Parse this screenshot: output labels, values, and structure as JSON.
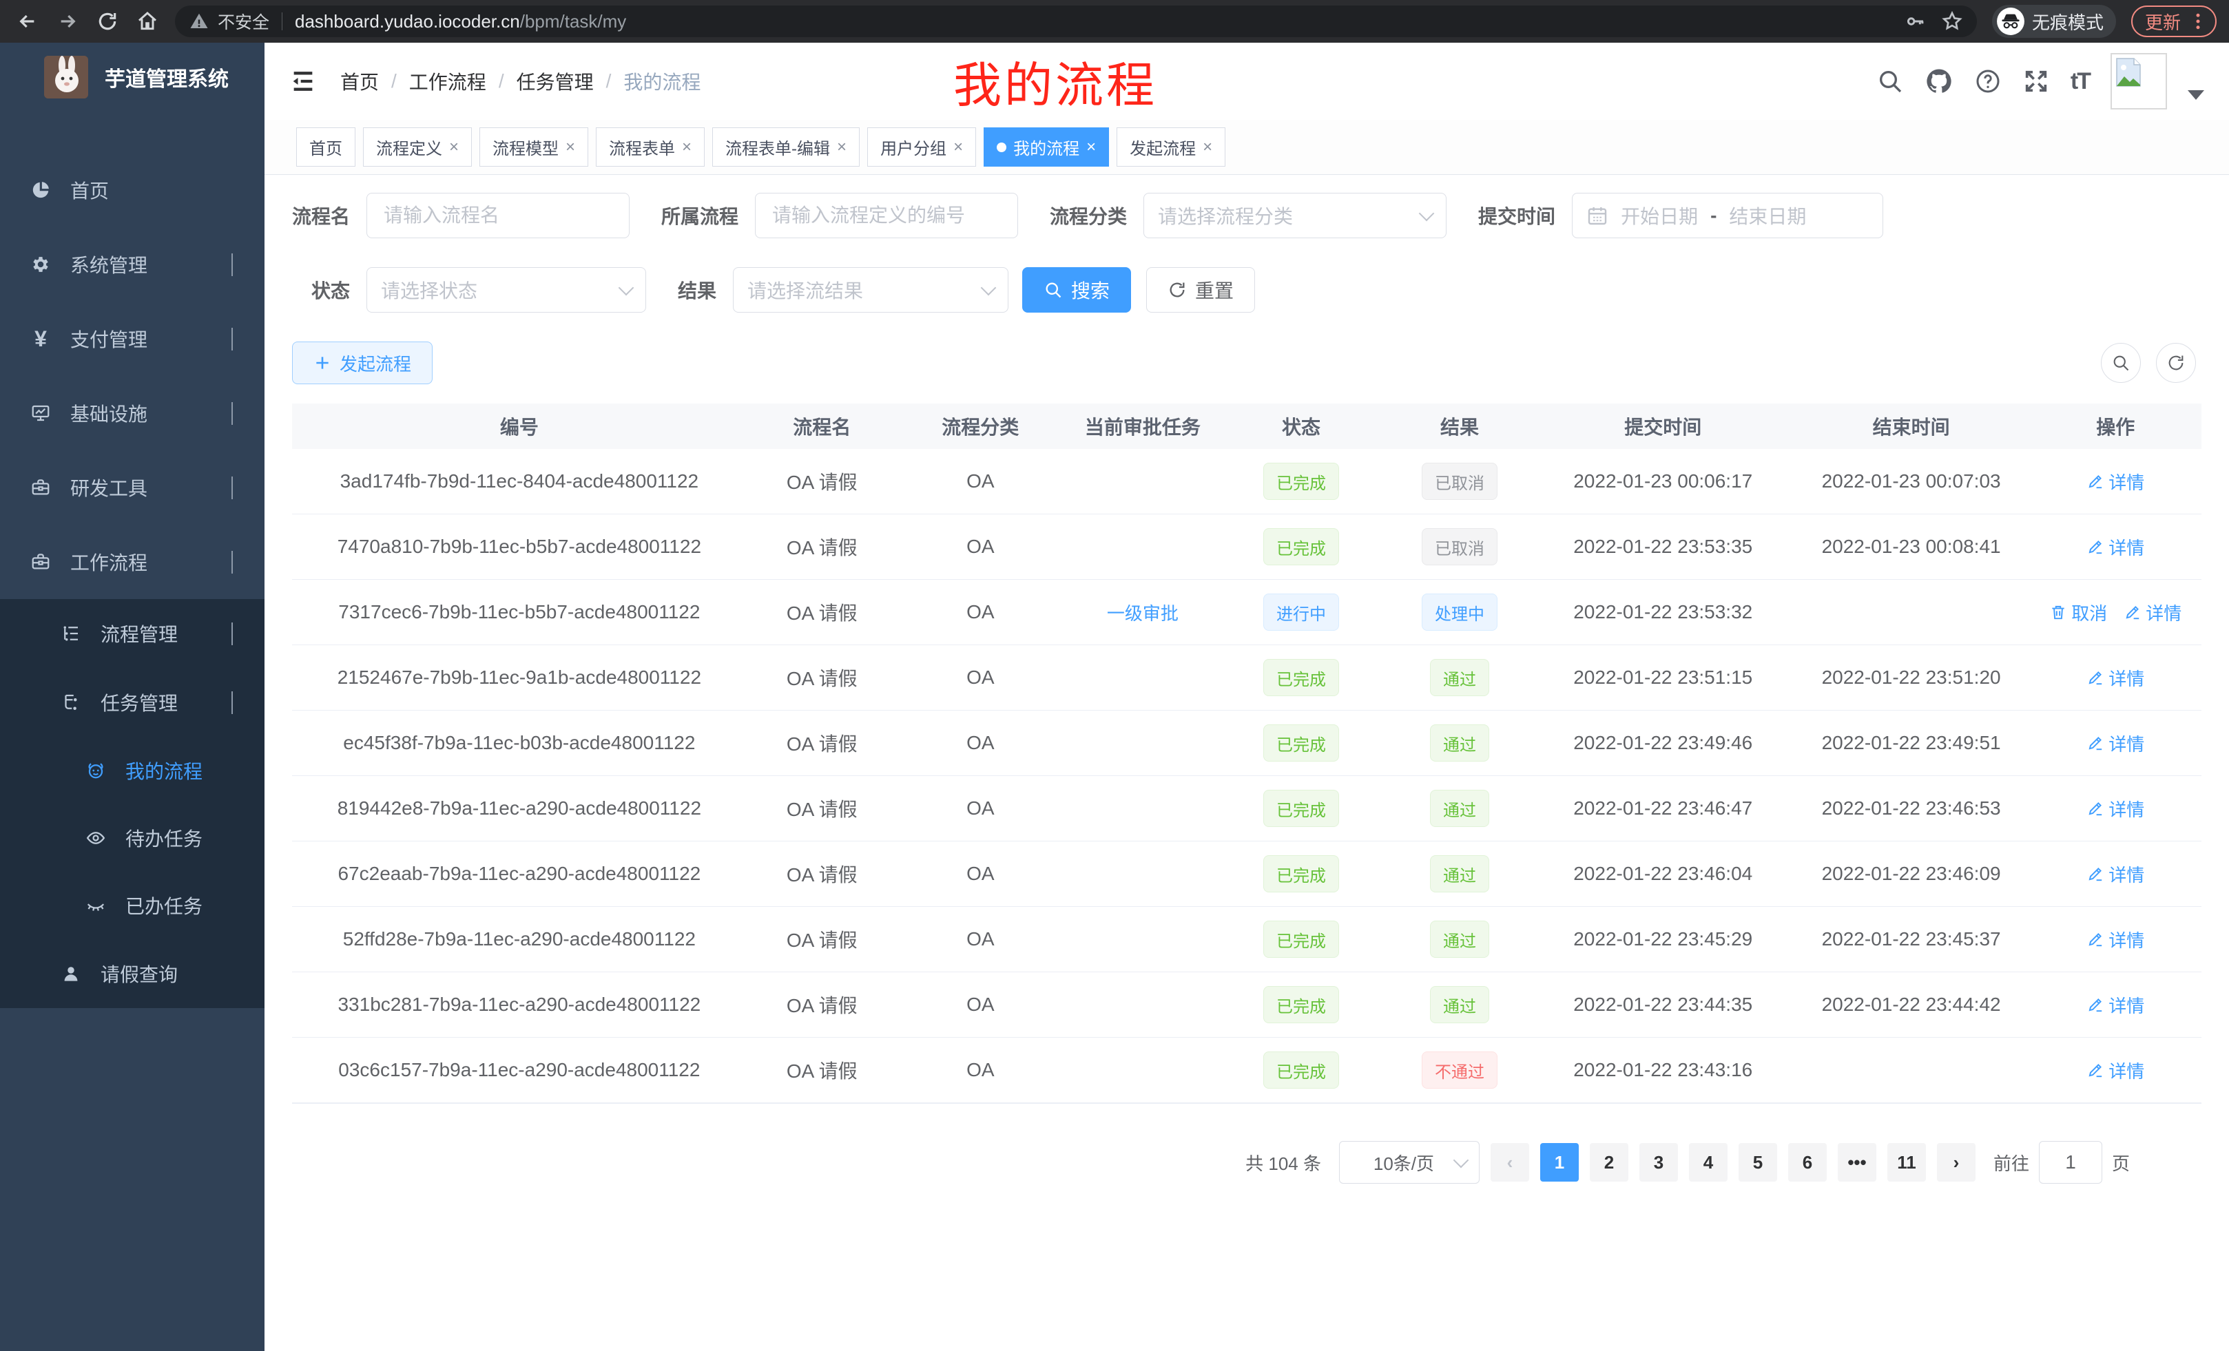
{
  "browser": {
    "security_label": "不安全",
    "url_host": "dashboard.yudao.iocoder.cn",
    "url_path": "/bpm/task/my",
    "incognito_label": "无痕模式",
    "update_label": "更新"
  },
  "sidebar": {
    "app_title": "芋道管理系统",
    "items": [
      {
        "label": "首页",
        "icon": "dashboard-icon",
        "level": 1,
        "chevron": "",
        "sub": false,
        "active": false
      },
      {
        "label": "系统管理",
        "icon": "gear-icon",
        "level": 1,
        "chevron": "down",
        "sub": false,
        "active": false
      },
      {
        "label": "支付管理",
        "icon": "yen-icon",
        "level": 1,
        "chevron": "down",
        "sub": false,
        "active": false
      },
      {
        "label": "基础设施",
        "icon": "monitor-icon",
        "level": 1,
        "chevron": "down",
        "sub": false,
        "active": false
      },
      {
        "label": "研发工具",
        "icon": "toolbox-icon",
        "level": 1,
        "chevron": "down",
        "sub": false,
        "active": false
      },
      {
        "label": "工作流程",
        "icon": "briefcase-icon",
        "level": 1,
        "chevron": "up",
        "sub": false,
        "active": false
      },
      {
        "label": "流程管理",
        "icon": "tree-icon",
        "level": 2,
        "chevron": "down",
        "sub": true,
        "active": false
      },
      {
        "label": "任务管理",
        "icon": "flow-icon",
        "level": 2,
        "chevron": "up",
        "sub": true,
        "active": false
      },
      {
        "label": "我的流程",
        "icon": "face-icon",
        "level": 3,
        "chevron": "",
        "sub": true,
        "active": true
      },
      {
        "label": "待办任务",
        "icon": "eye-icon",
        "level": 3,
        "chevron": "",
        "sub": true,
        "active": false
      },
      {
        "label": "已办任务",
        "icon": "eye-closed-icon",
        "level": 3,
        "chevron": "",
        "sub": true,
        "active": false
      },
      {
        "label": "请假查询",
        "icon": "user-icon",
        "level": 2,
        "chevron": "",
        "sub": true,
        "active": false
      }
    ]
  },
  "header": {
    "breadcrumb": [
      "首页",
      "工作流程",
      "任务管理",
      "我的流程"
    ],
    "annotation": "我的流程"
  },
  "tabs": [
    {
      "label": "首页",
      "closable": false,
      "active": false
    },
    {
      "label": "流程定义",
      "closable": true,
      "active": false
    },
    {
      "label": "流程模型",
      "closable": true,
      "active": false
    },
    {
      "label": "流程表单",
      "closable": true,
      "active": false
    },
    {
      "label": "流程表单-编辑",
      "closable": true,
      "active": false
    },
    {
      "label": "用户分组",
      "closable": true,
      "active": false
    },
    {
      "label": "我的流程",
      "closable": true,
      "active": true
    },
    {
      "label": "发起流程",
      "closable": true,
      "active": false
    }
  ],
  "filters": {
    "process_name": {
      "label": "流程名",
      "placeholder": "请输入流程名"
    },
    "process_def": {
      "label": "所属流程",
      "placeholder": "请输入流程定义的编号"
    },
    "category": {
      "label": "流程分类",
      "placeholder": "请选择流程分类"
    },
    "submit_time": {
      "label": "提交时间",
      "start_placeholder": "开始日期",
      "separator": "-",
      "end_placeholder": "结束日期"
    },
    "status": {
      "label": "状态",
      "placeholder": "请选择状态"
    },
    "result": {
      "label": "结果",
      "placeholder": "请选择流结果"
    },
    "search_label": "搜索",
    "reset_label": "重置"
  },
  "toolbar": {
    "create_label": "发起流程"
  },
  "table": {
    "columns": [
      {
        "key": "id",
        "label": "编号",
        "width": "23.8%"
      },
      {
        "key": "name",
        "label": "流程名",
        "width": "7.9%"
      },
      {
        "key": "category",
        "label": "流程分类",
        "width": "8.7%"
      },
      {
        "key": "task",
        "label": "当前审批任务",
        "width": "8.3%"
      },
      {
        "key": "status",
        "label": "状态",
        "width": "8.3%"
      },
      {
        "key": "result",
        "label": "结果",
        "width": "8.3%"
      },
      {
        "key": "submit_time",
        "label": "提交时间",
        "width": "13%"
      },
      {
        "key": "end_time",
        "label": "结束时间",
        "width": "13%"
      },
      {
        "key": "actions",
        "label": "操作",
        "width": "8.4%"
      }
    ],
    "rows": [
      {
        "id": "3ad174fb-7b9d-11ec-8404-acde48001122",
        "name": "OA 请假",
        "category": "OA",
        "task": "",
        "status": "已完成",
        "status_type": "success",
        "result": "已取消",
        "result_type": "info",
        "submit_time": "2022-01-23 00:06:17",
        "end_time": "2022-01-23 00:07:03",
        "actions": [
          {
            "label": "详情",
            "icon": "edit-icon"
          }
        ]
      },
      {
        "id": "7470a810-7b9b-11ec-b5b7-acde48001122",
        "name": "OA 请假",
        "category": "OA",
        "task": "",
        "status": "已完成",
        "status_type": "success",
        "result": "已取消",
        "result_type": "info",
        "submit_time": "2022-01-22 23:53:35",
        "end_time": "2022-01-23 00:08:41",
        "actions": [
          {
            "label": "详情",
            "icon": "edit-icon"
          }
        ]
      },
      {
        "id": "7317cec6-7b9b-11ec-b5b7-acde48001122",
        "name": "OA 请假",
        "category": "OA",
        "task": "一级审批",
        "status": "进行中",
        "status_type": "primary",
        "result": "处理中",
        "result_type": "primary",
        "submit_time": "2022-01-22 23:53:32",
        "end_time": "",
        "actions": [
          {
            "label": "取消",
            "icon": "trash-icon"
          },
          {
            "label": "详情",
            "icon": "edit-icon"
          }
        ]
      },
      {
        "id": "2152467e-7b9b-11ec-9a1b-acde48001122",
        "name": "OA 请假",
        "category": "OA",
        "task": "",
        "status": "已完成",
        "status_type": "success",
        "result": "通过",
        "result_type": "success",
        "submit_time": "2022-01-22 23:51:15",
        "end_time": "2022-01-22 23:51:20",
        "actions": [
          {
            "label": "详情",
            "icon": "edit-icon"
          }
        ]
      },
      {
        "id": "ec45f38f-7b9a-11ec-b03b-acde48001122",
        "name": "OA 请假",
        "category": "OA",
        "task": "",
        "status": "已完成",
        "status_type": "success",
        "result": "通过",
        "result_type": "success",
        "submit_time": "2022-01-22 23:49:46",
        "end_time": "2022-01-22 23:49:51",
        "actions": [
          {
            "label": "详情",
            "icon": "edit-icon"
          }
        ]
      },
      {
        "id": "819442e8-7b9a-11ec-a290-acde48001122",
        "name": "OA 请假",
        "category": "OA",
        "task": "",
        "status": "已完成",
        "status_type": "success",
        "result": "通过",
        "result_type": "success",
        "submit_time": "2022-01-22 23:46:47",
        "end_time": "2022-01-22 23:46:53",
        "actions": [
          {
            "label": "详情",
            "icon": "edit-icon"
          }
        ]
      },
      {
        "id": "67c2eaab-7b9a-11ec-a290-acde48001122",
        "name": "OA 请假",
        "category": "OA",
        "task": "",
        "status": "已完成",
        "status_type": "success",
        "result": "通过",
        "result_type": "success",
        "submit_time": "2022-01-22 23:46:04",
        "end_time": "2022-01-22 23:46:09",
        "actions": [
          {
            "label": "详情",
            "icon": "edit-icon"
          }
        ]
      },
      {
        "id": "52ffd28e-7b9a-11ec-a290-acde48001122",
        "name": "OA 请假",
        "category": "OA",
        "task": "",
        "status": "已完成",
        "status_type": "success",
        "result": "通过",
        "result_type": "success",
        "submit_time": "2022-01-22 23:45:29",
        "end_time": "2022-01-22 23:45:37",
        "actions": [
          {
            "label": "详情",
            "icon": "edit-icon"
          }
        ]
      },
      {
        "id": "331bc281-7b9a-11ec-a290-acde48001122",
        "name": "OA 请假",
        "category": "OA",
        "task": "",
        "status": "已完成",
        "status_type": "success",
        "result": "通过",
        "result_type": "success",
        "submit_time": "2022-01-22 23:44:35",
        "end_time": "2022-01-22 23:44:42",
        "actions": [
          {
            "label": "详情",
            "icon": "edit-icon"
          }
        ]
      },
      {
        "id": "03c6c157-7b9a-11ec-a290-acde48001122",
        "name": "OA 请假",
        "category": "OA",
        "task": "",
        "status": "已完成",
        "status_type": "success",
        "result": "不通过",
        "result_type": "danger",
        "submit_time": "2022-01-22 23:43:16",
        "end_time": "",
        "actions": [
          {
            "label": "详情",
            "icon": "edit-icon"
          }
        ]
      }
    ]
  },
  "pagination": {
    "total_label": "共 104 条",
    "page_size": "10条/页",
    "pages": [
      "1",
      "2",
      "3",
      "4",
      "5",
      "6",
      "•••",
      "11"
    ],
    "active_page": "1",
    "goto_label": "前往",
    "goto_value": "1",
    "page_suffix": "页"
  },
  "colors": {
    "accent": "#409eff",
    "success": "#67c23a",
    "danger": "#f56c6c",
    "info": "#909399",
    "annotation_red": "#fe2519",
    "sidebar_bg": "#304156",
    "submenu_bg": "#1f2d3d"
  }
}
